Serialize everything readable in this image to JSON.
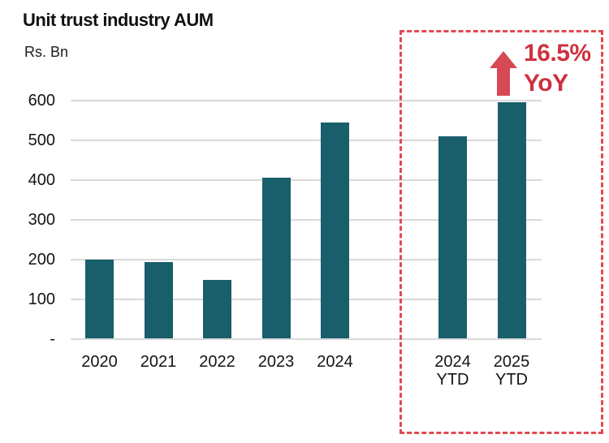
{
  "header": {
    "title": "Unit trust industry AUM",
    "unit": "Rs. Bn"
  },
  "annotation": {
    "value": "16.5%",
    "label": "YoY"
  },
  "chart_data": {
    "type": "bar",
    "title": "Unit trust industry AUM",
    "ylabel": "Rs. Bn",
    "xlabel": "",
    "ylim": [
      0,
      600
    ],
    "grid": true,
    "legend": "none",
    "ytick_values": [
      0,
      100,
      200,
      300,
      400,
      500,
      600
    ],
    "ytick_labels": [
      "-",
      "100",
      "200",
      "300",
      "400",
      "500",
      "600"
    ],
    "categories": [
      "2020",
      "2021",
      "2022",
      "2023",
      "2024",
      "2024 YTD",
      "2025 YTD"
    ],
    "values": [
      200,
      193,
      148,
      405,
      545,
      510,
      595
    ],
    "bars": [
      {
        "label_lines": [
          "2020"
        ],
        "value": 200,
        "slot": 0
      },
      {
        "label_lines": [
          "2021"
        ],
        "value": 193,
        "slot": 1
      },
      {
        "label_lines": [
          "2022"
        ],
        "value": 148,
        "slot": 2
      },
      {
        "label_lines": [
          "2023"
        ],
        "value": 405,
        "slot": 3
      },
      {
        "label_lines": [
          "2024"
        ],
        "value": 545,
        "slot": 4
      },
      {
        "label_lines": [
          "2024",
          "YTD"
        ],
        "value": 510,
        "slot": 6
      },
      {
        "label_lines": [
          "2025",
          "YTD"
        ],
        "value": 595,
        "slot": 7
      }
    ],
    "highlight_group": {
      "categories": [
        "2024 YTD",
        "2025 YTD"
      ],
      "annotation_value": "16.5%",
      "annotation_label": "YoY",
      "border_style": "dashed"
    },
    "colors": {
      "bar": "#185e6b",
      "gridline": "#d9d9d9",
      "annotation_text": "#ce3140",
      "annotation_arrow": "#d74954",
      "highlight_border": "#e2494f",
      "text": "#141414"
    }
  }
}
